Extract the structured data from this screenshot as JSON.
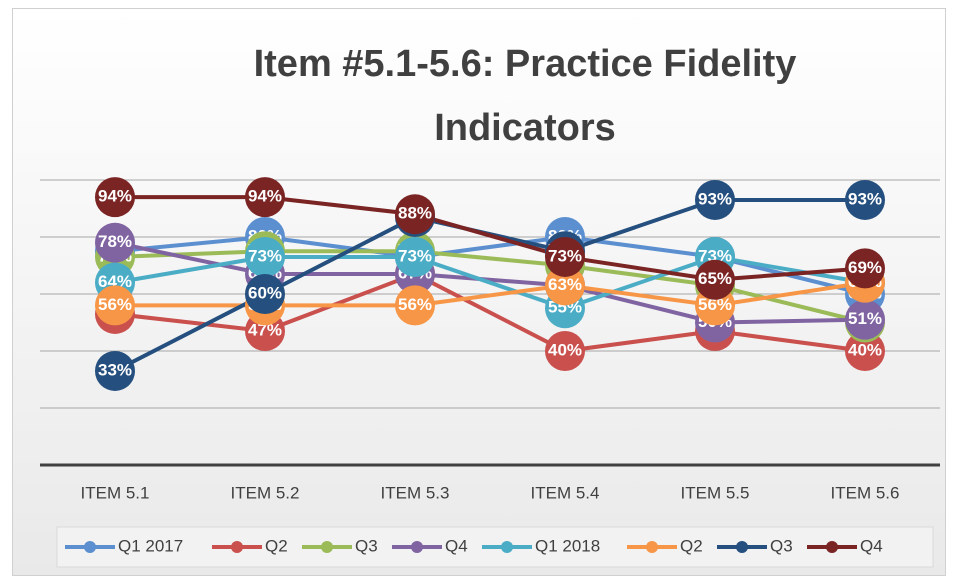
{
  "chart_data": {
    "type": "line",
    "title": "Item #5.1-5.6: Practice Fidelity Indicators",
    "categories": [
      "ITEM 5.1",
      "ITEM 5.2",
      "ITEM 5.3",
      "ITEM 5.4",
      "ITEM 5.5",
      "ITEM 5.6"
    ],
    "ylim": [
      0,
      100
    ],
    "yticks": [
      0,
      20,
      40,
      60,
      80,
      100
    ],
    "grid": true,
    "legend": "bottom",
    "series": [
      {
        "name": "Q1 2017",
        "color": "#5b8fd0",
        "values": [
          75,
          80,
          73,
          80,
          73,
          60
        ],
        "value_labels": [
          "75%",
          "80%",
          "73%",
          "80%",
          "73%",
          "60%"
        ]
      },
      {
        "name": "Q2",
        "color": "#c9504d",
        "values": [
          53,
          47,
          67,
          40,
          47,
          40
        ],
        "value_labels": [
          "53%",
          "47%",
          "67%",
          "40%",
          "47%",
          "40%"
        ]
      },
      {
        "name": "Q3",
        "color": "#9bbb59",
        "values": [
          73,
          75,
          75,
          70,
          63,
          50
        ],
        "value_labels": [
          "73%",
          "75%",
          "75%",
          "70%",
          "63%",
          "50%"
        ]
      },
      {
        "name": "Q4",
        "color": "#8064a2",
        "values": [
          78,
          67,
          67,
          63,
          50,
          51
        ],
        "value_labels": [
          "78%",
          "67%",
          "67%",
          "63%",
          "50%",
          "51%"
        ]
      },
      {
        "name": "Q1 2018",
        "color": "#4bacc6",
        "values": [
          64,
          73,
          73,
          55,
          73,
          64
        ],
        "value_labels": [
          "64%",
          "73%",
          "73%",
          "55%",
          "73%",
          "64%"
        ]
      },
      {
        "name": "Q2",
        "color": "#f79646",
        "values": [
          56,
          56,
          56,
          63,
          56,
          64
        ],
        "value_labels": [
          "56%",
          "56%",
          "56%",
          "63%",
          "56%",
          "64%"
        ]
      },
      {
        "name": "Q3",
        "color": "#254f7e",
        "values": [
          33,
          60,
          87,
          75,
          93,
          93
        ],
        "value_labels": [
          "33%",
          "60%",
          "87%",
          "75%",
          "93%",
          "93%"
        ]
      },
      {
        "name": "Q4",
        "color": "#7b2424",
        "values": [
          94,
          94,
          88,
          73,
          65,
          69
        ],
        "value_labels": [
          "94%",
          "94%",
          "88%",
          "73%",
          "65%",
          "69%"
        ]
      }
    ]
  }
}
